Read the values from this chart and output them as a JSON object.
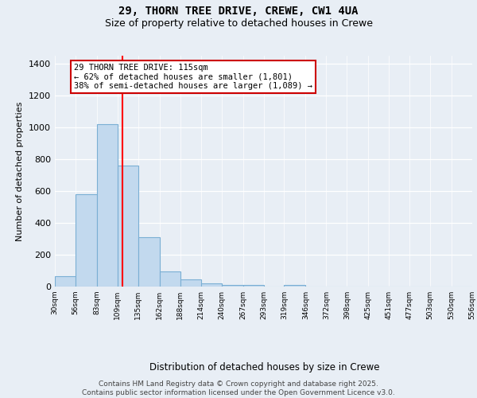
{
  "title_line1": "29, THORN TREE DRIVE, CREWE, CW1 4UA",
  "title_line2": "Size of property relative to detached houses in Crewe",
  "xlabel": "Distribution of detached houses by size in Crewe",
  "ylabel": "Number of detached properties",
  "bin_edges": [
    30,
    56,
    83,
    109,
    135,
    162,
    188,
    214,
    240,
    267,
    293,
    319,
    346,
    372,
    398,
    425,
    451,
    477,
    503,
    530,
    556
  ],
  "bar_heights": [
    65,
    580,
    1020,
    760,
    310,
    95,
    45,
    20,
    10,
    10,
    0,
    10,
    0,
    0,
    0,
    0,
    0,
    0,
    0,
    0
  ],
  "bar_color": "#c2d9ee",
  "bar_edgecolor": "#7aafd4",
  "bar_linewidth": 0.8,
  "background_color": "#e8eef5",
  "red_line_x": 115,
  "annotation_text": "29 THORN TREE DRIVE: 115sqm\n← 62% of detached houses are smaller (1,801)\n38% of semi-detached houses are larger (1,089) →",
  "annotation_box_color": "#ffffff",
  "annotation_box_edgecolor": "#cc0000",
  "ylim_max": 1450,
  "yticks": [
    0,
    200,
    400,
    600,
    800,
    1000,
    1200,
    1400
  ],
  "footer_line1": "Contains HM Land Registry data © Crown copyright and database right 2025.",
  "footer_line2": "Contains public sector information licensed under the Open Government Licence v3.0."
}
